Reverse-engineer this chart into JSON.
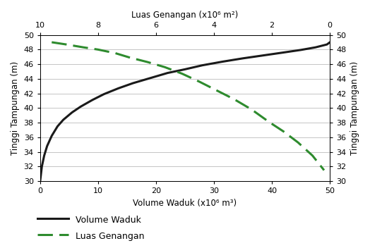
{
  "title_top": "Luas Genangan (x10⁶ m²)",
  "xlabel_bottom": "Volume Waduk (x10⁶ m³)",
  "ylabel_left": "Tinggi Tampungan (m)",
  "ylabel_right": "Tinggi Tampungan (m)",
  "ylim": [
    30,
    50
  ],
  "xlim_volume": [
    0,
    50
  ],
  "xlim_luas": [
    10,
    0
  ],
  "yticks": [
    30,
    32,
    34,
    36,
    38,
    40,
    42,
    44,
    46,
    48,
    50
  ],
  "xticks_bottom": [
    0,
    10,
    20,
    30,
    40,
    50
  ],
  "xticks_top": [
    10,
    8,
    6,
    4,
    2,
    0
  ],
  "volume_x": [
    0.0,
    0.3,
    0.7,
    1.2,
    2.0,
    3.0,
    4.0,
    5.5,
    7.0,
    9.0,
    11.0,
    13.5,
    16.0,
    19.0,
    22.0,
    25.0,
    28.0,
    31.5,
    35.0,
    38.5,
    42.0,
    45.0,
    47.5,
    49.5,
    50.0
  ],
  "volume_y": [
    30.0,
    32.0,
    33.5,
    34.8,
    36.2,
    37.5,
    38.4,
    39.4,
    40.2,
    41.1,
    41.9,
    42.7,
    43.4,
    44.1,
    44.8,
    45.3,
    45.85,
    46.35,
    46.8,
    47.2,
    47.6,
    47.95,
    48.3,
    48.7,
    49.0
  ],
  "luas_x": [
    9.6,
    9.1,
    8.5,
    8.0,
    7.4,
    6.9,
    6.3,
    5.7,
    5.1,
    4.5,
    3.9,
    3.3,
    2.7,
    2.1,
    1.6,
    1.1,
    0.6,
    0.2
  ],
  "luas_y": [
    49.0,
    48.7,
    48.3,
    48.0,
    47.5,
    46.9,
    46.3,
    45.6,
    44.7,
    43.6,
    42.4,
    41.2,
    39.8,
    38.1,
    36.8,
    35.3,
    33.5,
    31.5
  ],
  "volume_color": "#1a1a1a",
  "luas_color": "#2e8b2e",
  "grid_color": "#bbbbbb",
  "bg_color": "#ffffff",
  "legend_volume": "Volume Waduk",
  "legend_luas": "Luas Genangan",
  "fontsize_label": 8.5,
  "fontsize_tick": 8,
  "fontsize_legend": 9
}
